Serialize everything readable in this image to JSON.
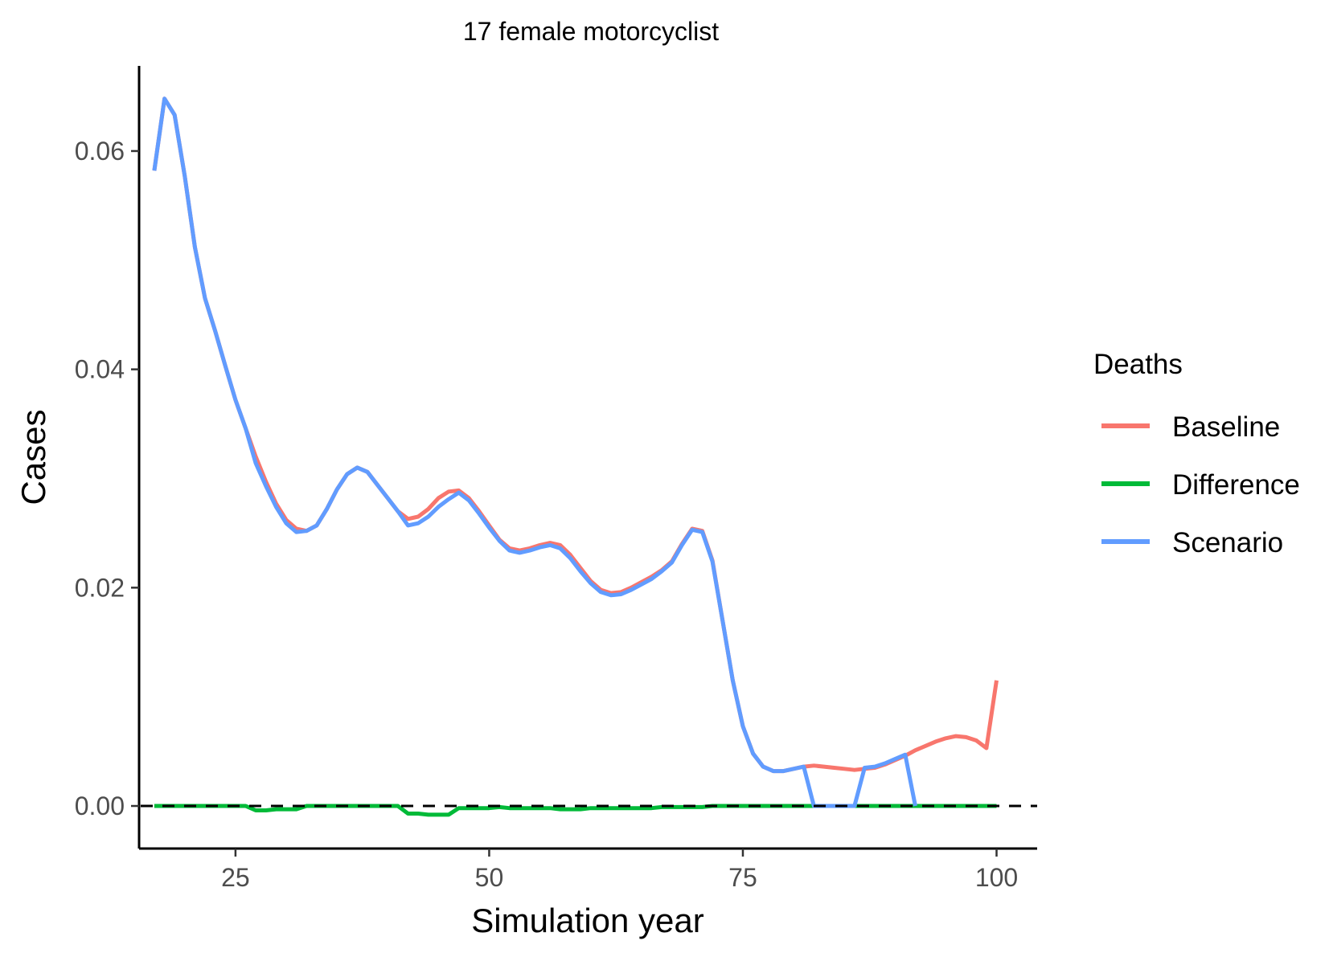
{
  "chart_data": {
    "type": "line",
    "title": "17 female motorcyclist",
    "xlabel": "Simulation year",
    "ylabel": "Cases",
    "xlim": [
      15.5,
      104
    ],
    "ylim": [
      -0.0039,
      0.0678
    ],
    "x_ticks": [
      25,
      50,
      75,
      100
    ],
    "x_tick_labels": [
      "25",
      "50",
      "75",
      "100"
    ],
    "y_ticks": [
      0,
      0.02,
      0.04,
      0.06
    ],
    "y_tick_labels": [
      "0.00",
      "0.02",
      "0.04",
      "0.06"
    ],
    "grid": false,
    "reference_line": {
      "y": 0,
      "style": "dashed",
      "color": "#000000"
    },
    "legend": {
      "title": "Deaths",
      "position": "right"
    },
    "series": [
      {
        "name": "Baseline",
        "color": "#F8766D",
        "x": [
          17,
          18,
          19,
          20,
          21,
          22,
          23,
          24,
          25,
          26,
          27,
          28,
          29,
          30,
          31,
          32,
          33,
          34,
          35,
          36,
          37,
          38,
          39,
          40,
          41,
          42,
          43,
          44,
          45,
          46,
          47,
          48,
          49,
          50,
          51,
          52,
          53,
          54,
          55,
          56,
          57,
          58,
          59,
          60,
          61,
          62,
          63,
          64,
          65,
          66,
          67,
          68,
          69,
          70,
          71,
          72,
          73,
          74,
          75,
          76,
          77,
          78,
          79,
          80,
          81,
          82,
          83,
          84,
          85,
          86,
          87,
          88,
          89,
          90,
          91,
          92,
          93,
          94,
          95,
          96,
          97,
          98,
          99,
          100
        ],
        "values": [
          0.0582,
          0.0648,
          0.0633,
          0.0577,
          0.0512,
          0.0465,
          0.0435,
          0.0403,
          0.0372,
          0.0346,
          0.032,
          0.0297,
          0.0277,
          0.0262,
          0.0254,
          0.0252,
          0.0257,
          0.0272,
          0.029,
          0.0304,
          0.031,
          0.0306,
          0.0294,
          0.0282,
          0.027,
          0.0263,
          0.0265,
          0.0272,
          0.0282,
          0.0288,
          0.0289,
          0.0282,
          0.027,
          0.0257,
          0.0244,
          0.0236,
          0.0234,
          0.0236,
          0.0239,
          0.0241,
          0.0239,
          0.023,
          0.0218,
          0.0206,
          0.0198,
          0.0195,
          0.0196,
          0.02,
          0.0205,
          0.021,
          0.0216,
          0.0224,
          0.024,
          0.0254,
          0.0252,
          0.0225,
          0.017,
          0.0115,
          0.0073,
          0.0048,
          0.0036,
          0.0032,
          0.0032,
          0.0034,
          0.0036,
          0.0037,
          0.0036,
          0.0035,
          0.0034,
          0.0033,
          0.0034,
          0.0035,
          0.0038,
          0.0042,
          0.0046,
          0.0051,
          0.0055,
          0.0059,
          0.0062,
          0.0064,
          0.0063,
          0.006,
          0.0053,
          0.0115
        ]
      },
      {
        "name": "Difference",
        "color": "#00BA38",
        "x": [
          17,
          18,
          19,
          20,
          21,
          22,
          23,
          24,
          25,
          26,
          27,
          28,
          29,
          30,
          31,
          32,
          33,
          34,
          35,
          36,
          37,
          38,
          39,
          40,
          41,
          42,
          43,
          44,
          45,
          46,
          47,
          48,
          49,
          50,
          51,
          52,
          53,
          54,
          55,
          56,
          57,
          58,
          59,
          60,
          61,
          62,
          63,
          64,
          65,
          66,
          67,
          68,
          69,
          70,
          71,
          72,
          73,
          74,
          75,
          76,
          77,
          78,
          79,
          80,
          81,
          82,
          83,
          84,
          85,
          86,
          87,
          88,
          89,
          90,
          91,
          92,
          93,
          94,
          95,
          96,
          97,
          98,
          99,
          100
        ],
        "values": [
          0,
          0,
          0,
          0,
          0,
          0,
          0,
          0,
          0,
          0,
          -0.0004,
          -0.0004,
          -0.0003,
          -0.0003,
          -0.0003,
          0,
          0,
          0,
          0,
          0,
          0,
          0,
          0,
          0,
          0,
          -0.0007,
          -0.0007,
          -0.0008,
          -0.0008,
          -0.0008,
          -0.0002,
          -0.0002,
          -0.0002,
          -0.0002,
          -0.0001,
          -0.0002,
          -0.0002,
          -0.0002,
          -0.0002,
          -0.0002,
          -0.0003,
          -0.0003,
          -0.0003,
          -0.0002,
          -0.0002,
          -0.0002,
          -0.0002,
          -0.0002,
          -0.0002,
          -0.0002,
          -0.0001,
          -0.0001,
          -0.0001,
          -0.0001,
          -0.0001,
          0,
          0,
          0,
          0,
          0,
          0,
          0,
          0,
          0,
          0,
          0,
          0,
          0,
          0,
          0,
          0,
          0,
          0,
          0,
          0,
          0,
          0,
          0,
          0,
          0,
          0,
          0,
          0,
          0
        ]
      },
      {
        "name": "Scenario",
        "color": "#619CFF",
        "x": [
          17,
          18,
          19,
          20,
          21,
          22,
          23,
          24,
          25,
          26,
          27,
          28,
          29,
          30,
          31,
          32,
          33,
          34,
          35,
          36,
          37,
          38,
          39,
          40,
          41,
          42,
          43,
          44,
          45,
          46,
          47,
          48,
          49,
          50,
          51,
          52,
          53,
          54,
          55,
          56,
          57,
          58,
          59,
          60,
          61,
          62,
          63,
          64,
          65,
          66,
          67,
          68,
          69,
          70,
          71,
          72,
          73,
          74,
          75,
          76,
          77,
          78,
          79,
          80,
          81,
          82,
          83,
          84,
          85,
          86,
          87,
          88,
          89,
          90,
          91,
          92
        ],
        "values": [
          0.0582,
          0.0648,
          0.0633,
          0.0577,
          0.0512,
          0.0465,
          0.0435,
          0.0403,
          0.0372,
          0.0346,
          0.0314,
          0.0293,
          0.0274,
          0.0259,
          0.0251,
          0.0252,
          0.0257,
          0.0272,
          0.029,
          0.0304,
          0.031,
          0.0306,
          0.0294,
          0.0282,
          0.027,
          0.0257,
          0.0259,
          0.0265,
          0.0274,
          0.0281,
          0.0287,
          0.028,
          0.0268,
          0.0255,
          0.0243,
          0.0234,
          0.0232,
          0.0234,
          0.0237,
          0.0239,
          0.0236,
          0.0227,
          0.0215,
          0.0204,
          0.0196,
          0.0193,
          0.0194,
          0.0198,
          0.0203,
          0.0208,
          0.0215,
          0.0223,
          0.0239,
          0.0253,
          0.0251,
          0.0224,
          0.017,
          0.0115,
          0.0073,
          0.0048,
          0.0036,
          0.0032,
          0.0032,
          0.0034,
          0.0036,
          0,
          0,
          0,
          0,
          0,
          0.0035,
          0.0036,
          0.0039,
          0.0043,
          0.0047,
          0
        ]
      }
    ]
  }
}
